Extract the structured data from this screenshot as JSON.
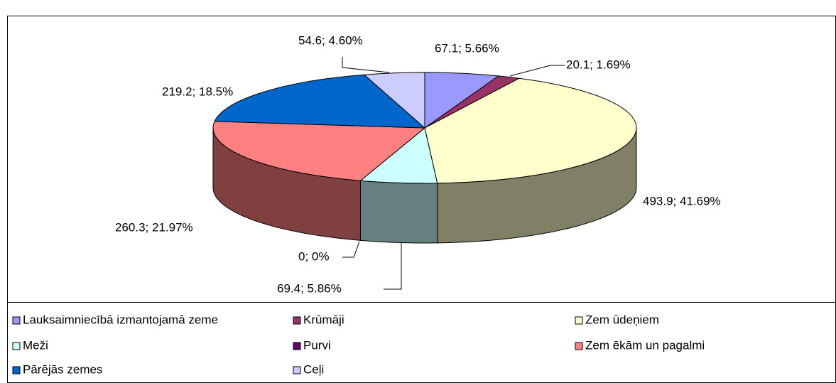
{
  "chart_data": {
    "type": "pie",
    "categories": [
      "Lauksaimniecībā izmantojamā zeme",
      "Krūmāji",
      "Zem ūdeņiem",
      "Meži",
      "Purvi",
      "Zem ēkām un pagalmi",
      "Pārējās zemes",
      "Ceļi"
    ],
    "values": [
      67.1,
      20.1,
      493.9,
      69.4,
      0,
      260.3,
      219.2,
      54.6
    ],
    "percents": [
      5.66,
      1.69,
      41.69,
      5.86,
      0,
      21.97,
      18.5,
      4.6
    ],
    "value_labels": [
      "67.1; 5.66%",
      "20.1; 1.69%",
      "493.9; 41.69%",
      "69.4; 5.86%",
      "0; 0%",
      "260.3; 21.97%",
      "219.2; 18.5%",
      "54.6; 4.60%"
    ],
    "colors": [
      "#9999ff",
      "#993366",
      "#ffffcc",
      "#ccffff",
      "#660066",
      "#ff8080",
      "#0066cc",
      "#ccccff"
    ],
    "legend": "bottom"
  }
}
